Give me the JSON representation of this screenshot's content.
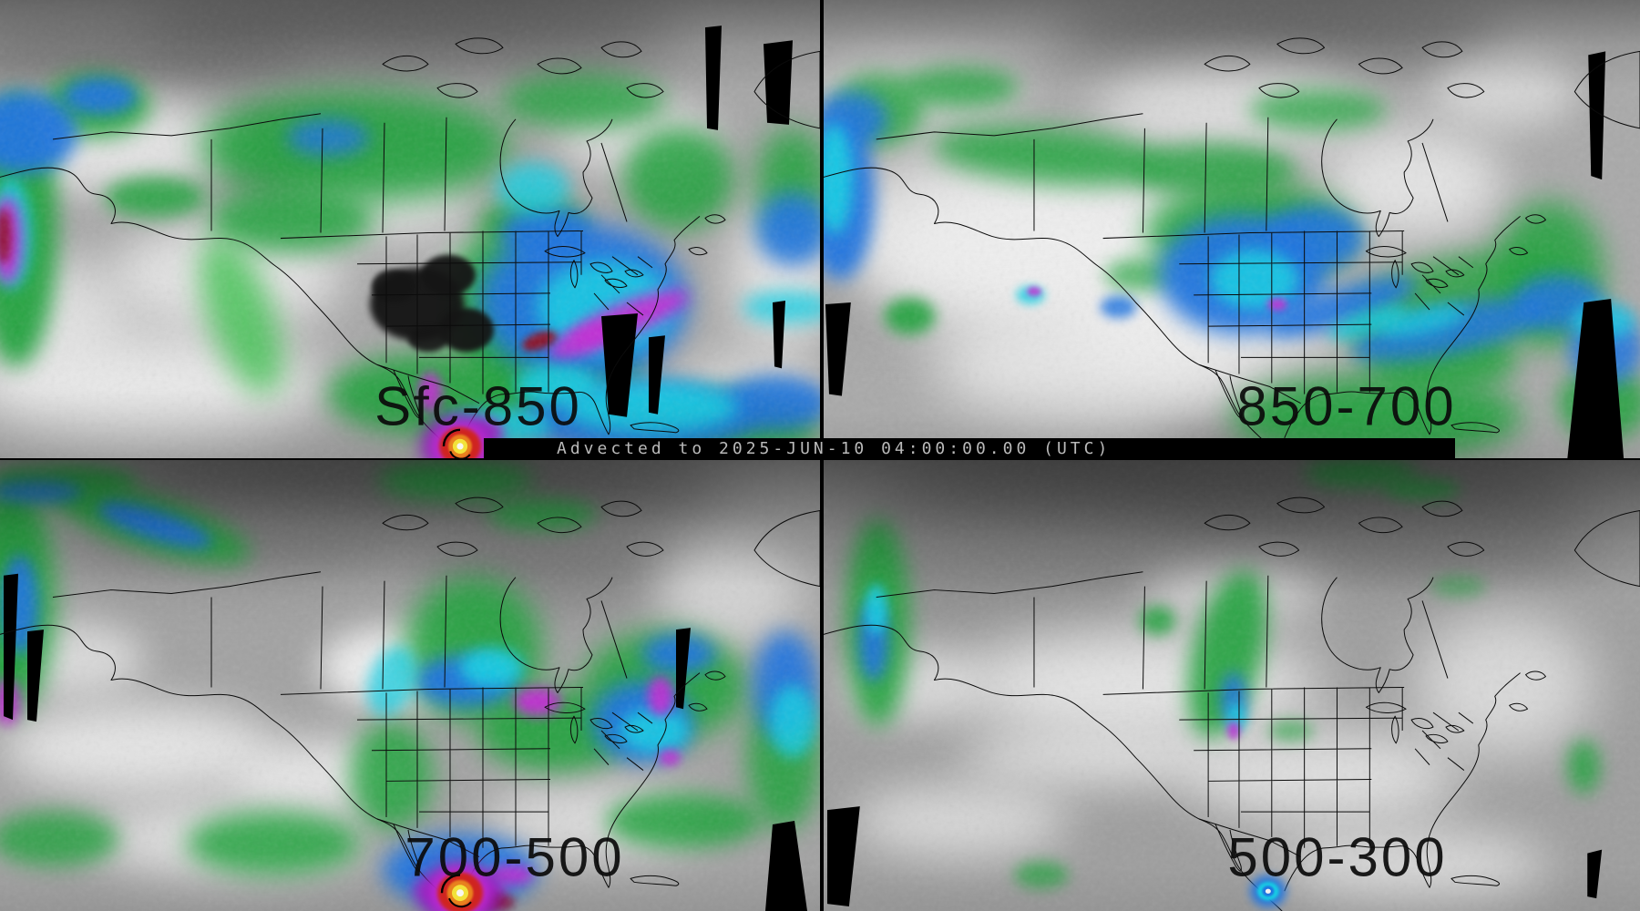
{
  "banner": {
    "text": "Advected to 2025-JUN-10 04:00:00.00 (UTC)"
  },
  "panels": [
    {
      "id": "sfc-850",
      "label": "Sfc-850",
      "position": "top-left"
    },
    {
      "id": "850-700",
      "label": "850-700",
      "position": "top-right"
    },
    {
      "id": "700-500",
      "label": "700-500",
      "position": "bottom-left"
    },
    {
      "id": "500-300",
      "label": "500-300",
      "position": "bottom-right"
    }
  ],
  "palette": {
    "base_gray": "#a4a4a4",
    "cloud_white": "#f1f1f1",
    "shadow_gray": "#646464",
    "green": "#1fa23c",
    "bright_green": "#3cc24e",
    "blue": "#1e74e0",
    "cyan": "#17cfe4",
    "teal": "#00a89a",
    "magenta": "#c32cd4",
    "purple": "#8a18b8",
    "dark_red": "#8e1024",
    "cyclone_red": "#cf2420",
    "cyclone_orange": "#e8821e",
    "cyclone_yellow": "#f2e23a",
    "cyclone_eye_white": "#f8f6ee",
    "terrain_black": "#151515",
    "no_data_black": "#000000",
    "map_outline": "#0b0b0b",
    "banner_bg": "#000000",
    "banner_text": "#b9b9b9"
  }
}
